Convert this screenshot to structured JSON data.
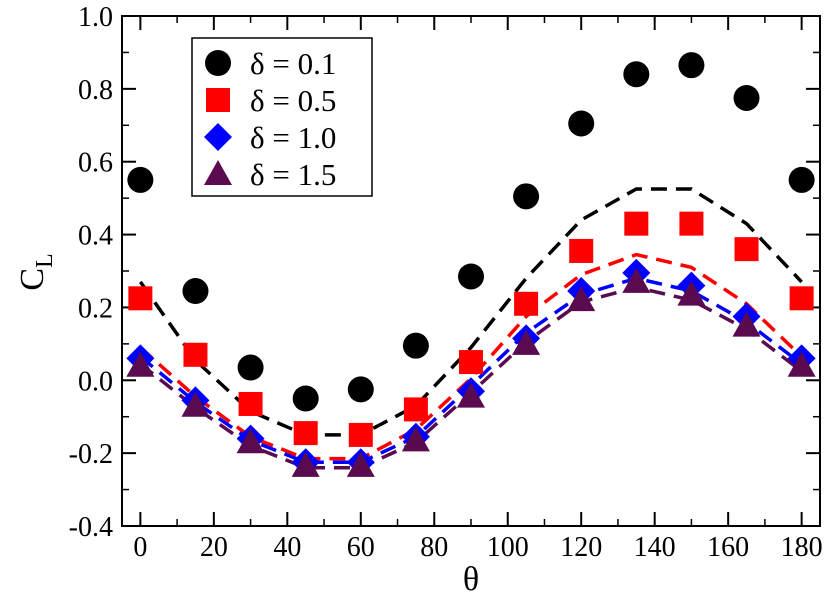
{
  "chart_data": {
    "type": "scatter",
    "title": "",
    "xlabel": "θ",
    "ylabel_main": "C",
    "ylabel_sub": "L",
    "xlim": [
      -5,
      185
    ],
    "ylim": [
      -0.4,
      1.0
    ],
    "x_ticks": [
      0,
      20,
      40,
      60,
      80,
      100,
      120,
      140,
      160,
      180
    ],
    "x_tick_labels": [
      "0",
      "20",
      "40",
      "60",
      "80",
      "100",
      "120",
      "140",
      "160",
      "180"
    ],
    "y_ticks": [
      -0.4,
      -0.2,
      0.0,
      0.2,
      0.4,
      0.6,
      0.8,
      1.0
    ],
    "y_tick_labels": [
      "-0.4",
      "-0.2",
      "0.0",
      "0.2",
      "0.4",
      "0.6",
      "0.8",
      "1.0"
    ],
    "grid": false,
    "legend_position": "top-left",
    "x": [
      0,
      15,
      30,
      45,
      60,
      75,
      90,
      105,
      120,
      135,
      150,
      165,
      180
    ],
    "series": [
      {
        "name": "δ = 0.1",
        "marker": "circle",
        "color": "#000000",
        "values": [
          0.55,
          0.245,
          0.035,
          -0.05,
          -0.025,
          0.095,
          0.285,
          0.505,
          0.705,
          0.84,
          0.865,
          0.775,
          0.55
        ]
      },
      {
        "name": "δ = 0.5",
        "marker": "square",
        "color": "#ff0000",
        "values": [
          0.225,
          0.07,
          -0.065,
          -0.145,
          -0.15,
          -0.08,
          0.05,
          0.21,
          0.355,
          0.43,
          0.43,
          0.36,
          0.225
        ]
      },
      {
        "name": "δ = 1.0",
        "marker": "diamond",
        "color": "#0000ff",
        "values": [
          0.06,
          -0.055,
          -0.16,
          -0.225,
          -0.225,
          -0.155,
          -0.03,
          0.115,
          0.245,
          0.295,
          0.26,
          0.175,
          0.06
        ]
      },
      {
        "name": "δ = 1.5",
        "marker": "triangle",
        "color": "#5a0a4f",
        "values": [
          0.04,
          -0.07,
          -0.17,
          -0.235,
          -0.235,
          -0.165,
          -0.045,
          0.1,
          0.22,
          0.27,
          0.235,
          0.15,
          0.04
        ]
      }
    ],
    "dashed_lines": [
      {
        "name": "black dashed",
        "color": "#000000",
        "values": [
          0.27,
          0.055,
          -0.085,
          -0.15,
          -0.15,
          -0.07,
          0.09,
          0.28,
          0.44,
          0.525,
          0.525,
          0.43,
          0.27
        ]
      },
      {
        "name": "red dashed",
        "color": "#ff0000",
        "values": [
          0.09,
          -0.045,
          -0.155,
          -0.215,
          -0.215,
          -0.135,
          0.005,
          0.175,
          0.29,
          0.345,
          0.31,
          0.21,
          0.065
        ]
      },
      {
        "name": "blue dashed",
        "color": "#0000ff",
        "values": [
          0.065,
          -0.06,
          -0.165,
          -0.225,
          -0.225,
          -0.155,
          -0.015,
          0.13,
          0.235,
          0.28,
          0.245,
          0.16,
          0.045
        ]
      },
      {
        "name": "purple dashed",
        "color": "#5a0a4f",
        "values": [
          0.045,
          -0.075,
          -0.18,
          -0.24,
          -0.24,
          -0.17,
          -0.035,
          0.105,
          0.215,
          0.255,
          0.22,
          0.14,
          0.025
        ]
      }
    ]
  }
}
